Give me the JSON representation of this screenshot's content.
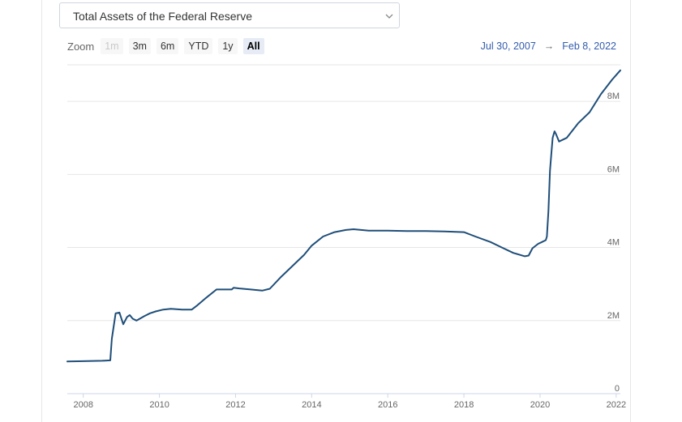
{
  "selector": {
    "label": "Total Assets of the Federal Reserve"
  },
  "zoom": {
    "label": "Zoom",
    "buttons": [
      {
        "label": "1m",
        "state": "disabled"
      },
      {
        "label": "3m",
        "state": "normal"
      },
      {
        "label": "6m",
        "state": "normal"
      },
      {
        "label": "YTD",
        "state": "normal"
      },
      {
        "label": "1y",
        "state": "normal"
      },
      {
        "label": "All",
        "state": "active"
      }
    ]
  },
  "range": {
    "from": "Jul 30, 2007",
    "arrow": "→",
    "to": "Feb 8, 2022"
  },
  "colors": {
    "line": "#1f4e79",
    "grid": "#e6e6e6",
    "range_text": "#335cad"
  },
  "icons": {
    "dropdown": "chevron-down-icon"
  },
  "chart_data": {
    "type": "line",
    "title": "",
    "xlabel": "",
    "ylabel": "",
    "xlim": [
      2007.58,
      2022.11
    ],
    "ylim": [
      0,
      9
    ],
    "x_ticks": [
      2008,
      2010,
      2012,
      2014,
      2016,
      2018,
      2020,
      2022
    ],
    "x_tick_labels": [
      "2008",
      "2010",
      "2012",
      "2014",
      "2016",
      "2018",
      "2020",
      "2022"
    ],
    "y_ticks": [
      0,
      2,
      4,
      6,
      8
    ],
    "y_tick_labels": [
      "0",
      "2M",
      "4M",
      "6M",
      "8M"
    ],
    "grid": true,
    "series": [
      {
        "x": [
          2007.58,
          2008.0,
          2008.5,
          2008.71,
          2008.75,
          2008.85,
          2008.95,
          2009.05,
          2009.15,
          2009.22,
          2009.3,
          2009.4,
          2009.6,
          2009.75,
          2009.9,
          2010.1,
          2010.3,
          2010.6,
          2010.85,
          2011.0,
          2011.2,
          2011.5,
          2011.9,
          2011.95,
          2012.1,
          2012.4,
          2012.7,
          2012.9,
          2013.2,
          2013.5,
          2013.8,
          2014.0,
          2014.3,
          2014.6,
          2014.9,
          2015.1,
          2015.5,
          2016.0,
          2016.5,
          2017.0,
          2017.5,
          2018.0,
          2018.3,
          2018.7,
          2019.0,
          2019.3,
          2019.6,
          2019.7,
          2019.8,
          2019.95,
          2020.05,
          2020.15,
          2020.18,
          2020.22,
          2020.26,
          2020.3,
          2020.33,
          2020.38,
          2020.42,
          2020.5,
          2020.7,
          2021.0,
          2021.3,
          2021.6,
          2021.9,
          2022.11
        ],
        "y": [
          0.88,
          0.89,
          0.9,
          0.91,
          1.5,
          2.2,
          2.22,
          1.9,
          2.1,
          2.15,
          2.05,
          2.0,
          2.12,
          2.2,
          2.25,
          2.3,
          2.32,
          2.3,
          2.3,
          2.42,
          2.6,
          2.85,
          2.85,
          2.9,
          2.88,
          2.85,
          2.82,
          2.87,
          3.2,
          3.5,
          3.8,
          4.05,
          4.3,
          4.42,
          4.48,
          4.5,
          4.46,
          4.46,
          4.45,
          4.45,
          4.44,
          4.42,
          4.3,
          4.15,
          4.0,
          3.85,
          3.76,
          3.78,
          3.98,
          4.1,
          4.15,
          4.2,
          4.3,
          5.0,
          6.1,
          6.6,
          7.0,
          7.18,
          7.1,
          6.9,
          7.0,
          7.4,
          7.7,
          8.2,
          8.6,
          8.85
        ]
      }
    ]
  }
}
